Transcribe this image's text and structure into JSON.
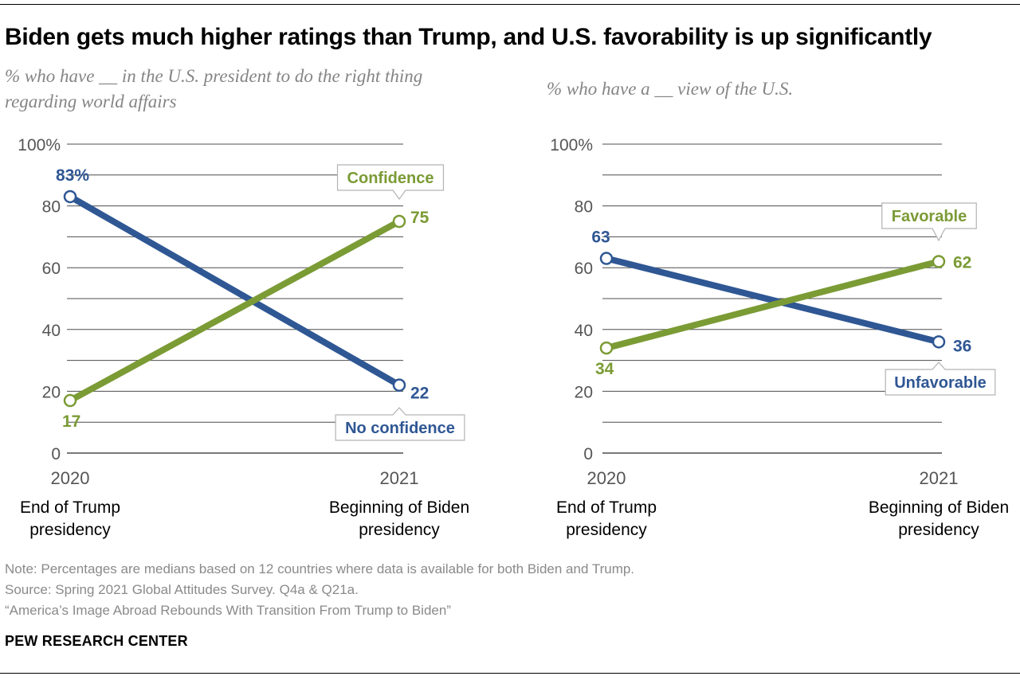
{
  "title": "Biden gets much higher ratings than Trump, and U.S. favorability is up significantly",
  "colors": {
    "blue": "#2f5794",
    "green": "#7b9b35",
    "grid": "#4d4d4d",
    "axis_text": "#555555",
    "label_box_border": "#b3b3b3"
  },
  "chart_data": [
    {
      "type": "line",
      "subtitle_lines": [
        "% who have __ in the U.S. president to do the right thing",
        "regarding world affairs"
      ],
      "x": [
        "2020",
        "2021"
      ],
      "x_desc": [
        [
          "End of Trump",
          "presidency"
        ],
        [
          "Beginning of Biden",
          "presidency"
        ]
      ],
      "ylim": [
        0,
        100
      ],
      "yticks": [
        "0",
        "20",
        "40",
        "60",
        "80",
        "100%"
      ],
      "grid": true,
      "series": [
        {
          "name": "No confidence",
          "color": "#2f5794",
          "values": [
            83,
            22
          ],
          "data_labels": [
            "83%",
            "22"
          ]
        },
        {
          "name": "Confidence",
          "color": "#7b9b35",
          "values": [
            17,
            75
          ],
          "data_labels": [
            "17",
            "75"
          ]
        }
      ]
    },
    {
      "type": "line",
      "subtitle_lines": [
        "% who have a __ view of the U.S."
      ],
      "x": [
        "2020",
        "2021"
      ],
      "x_desc": [
        [
          "End of Trump",
          "presidency"
        ],
        [
          "Beginning of Biden",
          "presidency"
        ]
      ],
      "ylim": [
        0,
        100
      ],
      "yticks": [
        "0",
        "20",
        "40",
        "60",
        "80",
        "100%"
      ],
      "grid": true,
      "series": [
        {
          "name": "Unfavorable",
          "color": "#2f5794",
          "values": [
            63,
            36
          ],
          "data_labels": [
            "63",
            "36"
          ]
        },
        {
          "name": "Favorable",
          "color": "#7b9b35",
          "values": [
            34,
            62
          ],
          "data_labels": [
            "34",
            "62"
          ]
        }
      ]
    }
  ],
  "footer": {
    "note": "Note: Percentages are medians based on 12 countries where data is available for both Biden and Trump.",
    "source": "Source: Spring 2021 Global Attitudes Survey. Q4a & Q21a.",
    "report": "“America’s Image Abroad Rebounds With Transition From Trump to Biden”",
    "brand": "PEW RESEARCH CENTER"
  }
}
